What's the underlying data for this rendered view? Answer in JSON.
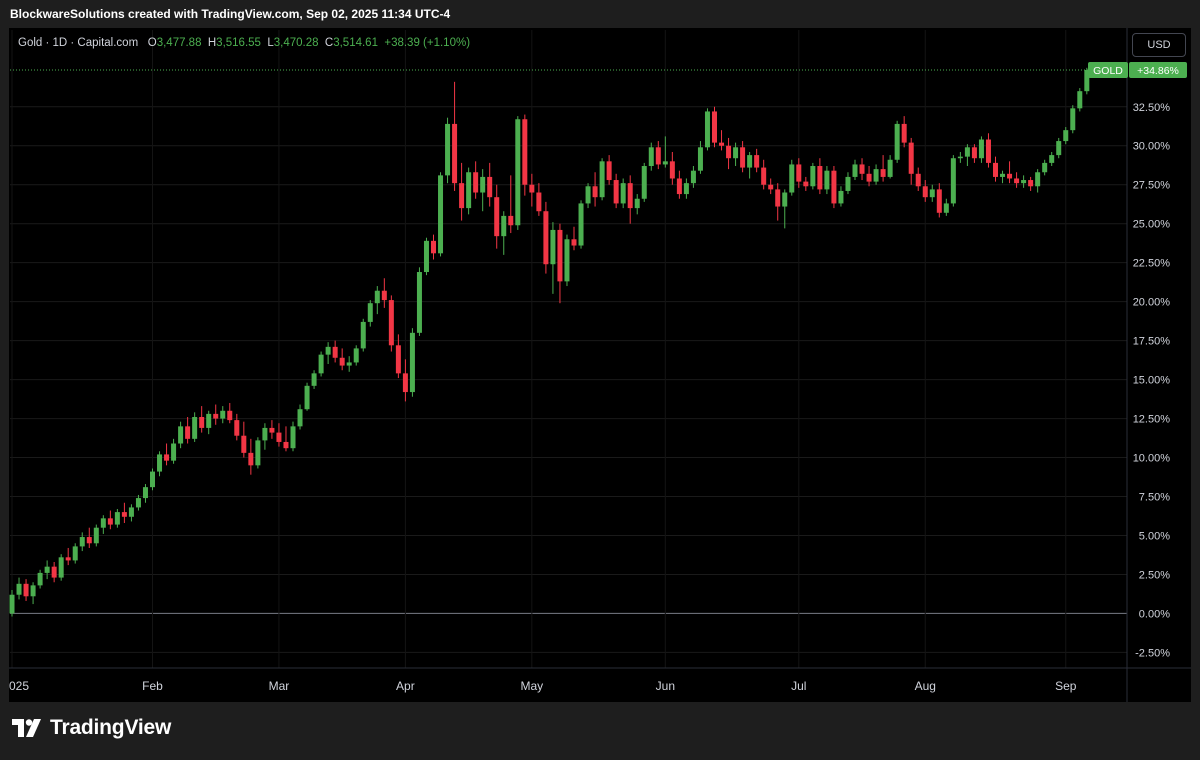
{
  "header": {
    "attribution": "BlockwareSolutions created with TradingView.com, Sep 02, 2025 11:34 UTC-4"
  },
  "legend": {
    "symbol": "Gold · 1D · Capital.com",
    "open_label": "O",
    "open_value": "3,477.88",
    "high_label": "H",
    "high_value": "3,516.55",
    "low_label": "L",
    "low_value": "3,470.28",
    "close_label": "C",
    "close_value": "3,514.61",
    "change": "+38.39 (+1.10%)"
  },
  "currency_button": "USD",
  "price_badge": {
    "name": "GOLD",
    "value": "+34.86%"
  },
  "footer": {
    "logo_text": "TradingView"
  },
  "colors": {
    "up": "#4caf50",
    "down": "#f23645",
    "badge": "#4caf50",
    "background": "#000000"
  },
  "chart_data": {
    "type": "candlestick",
    "title": "Gold · 1D · Capital.com",
    "y_unit": "percent change",
    "ylim": [
      -3.5,
      35.5
    ],
    "y_ticks": [
      "32.50%",
      "30.00%",
      "27.50%",
      "25.00%",
      "22.50%",
      "20.00%",
      "17.50%",
      "15.00%",
      "12.50%",
      "10.00%",
      "7.50%",
      "5.00%",
      "2.50%",
      "0.00%",
      "-2.50%"
    ],
    "y_tick_values": [
      32.5,
      30,
      27.5,
      25,
      22.5,
      20,
      17.5,
      15,
      12.5,
      10,
      7.5,
      5,
      2.5,
      0,
      -2.5
    ],
    "x_labels": [
      {
        "label": "025",
        "day": 0
      },
      {
        "label": "Feb",
        "day": 20
      },
      {
        "label": "Mar",
        "day": 38
      },
      {
        "label": "Apr",
        "day": 56
      },
      {
        "label": "May",
        "day": 74
      },
      {
        "label": "Jun",
        "day": 93
      },
      {
        "label": "Jul",
        "day": 112
      },
      {
        "label": "Aug",
        "day": 130
      },
      {
        "label": "Sep",
        "day": 150
      }
    ],
    "last_value": 34.86,
    "candles": [
      [
        0.0,
        1.5,
        -0.2,
        1.2
      ],
      [
        1.2,
        2.3,
        0.9,
        1.9
      ],
      [
        1.9,
        2.2,
        0.8,
        1.1
      ],
      [
        1.1,
        2.0,
        0.6,
        1.8
      ],
      [
        1.8,
        2.8,
        1.6,
        2.6
      ],
      [
        2.6,
        3.4,
        2.2,
        3.0
      ],
      [
        3.0,
        3.3,
        2.0,
        2.3
      ],
      [
        2.3,
        3.8,
        2.1,
        3.6
      ],
      [
        3.6,
        4.2,
        3.1,
        3.4
      ],
      [
        3.4,
        4.5,
        3.2,
        4.3
      ],
      [
        4.3,
        5.2,
        4.0,
        4.9
      ],
      [
        4.9,
        5.5,
        4.2,
        4.5
      ],
      [
        4.5,
        5.7,
        4.3,
        5.5
      ],
      [
        5.5,
        6.3,
        5.1,
        6.1
      ],
      [
        6.1,
        6.6,
        5.4,
        5.7
      ],
      [
        5.7,
        6.7,
        5.5,
        6.5
      ],
      [
        6.5,
        7.1,
        5.8,
        6.2
      ],
      [
        6.2,
        7.0,
        5.9,
        6.8
      ],
      [
        6.8,
        7.6,
        6.6,
        7.4
      ],
      [
        7.4,
        8.3,
        7.1,
        8.1
      ],
      [
        8.1,
        9.3,
        7.9,
        9.1
      ],
      [
        9.1,
        10.4,
        8.8,
        10.2
      ],
      [
        10.2,
        10.9,
        9.5,
        9.8
      ],
      [
        9.8,
        11.2,
        9.6,
        10.9
      ],
      [
        10.9,
        12.3,
        10.6,
        12.0
      ],
      [
        12.0,
        12.6,
        10.9,
        11.2
      ],
      [
        11.2,
        12.9,
        11.0,
        12.6
      ],
      [
        12.6,
        13.3,
        11.6,
        11.9
      ],
      [
        11.9,
        13.0,
        11.5,
        12.8
      ],
      [
        12.8,
        13.4,
        12.1,
        12.5
      ],
      [
        12.5,
        13.3,
        12.2,
        13.0
      ],
      [
        13.0,
        13.5,
        12.2,
        12.4
      ],
      [
        12.4,
        12.8,
        11.1,
        11.4
      ],
      [
        11.4,
        12.3,
        10.0,
        10.3
      ],
      [
        10.3,
        11.2,
        8.9,
        9.5
      ],
      [
        9.5,
        11.3,
        9.3,
        11.1
      ],
      [
        11.1,
        12.2,
        10.5,
        11.9
      ],
      [
        11.9,
        12.4,
        11.2,
        11.6
      ],
      [
        11.6,
        12.2,
        10.7,
        11.0
      ],
      [
        11.0,
        12.0,
        10.4,
        10.6
      ],
      [
        10.6,
        12.3,
        10.4,
        12.0
      ],
      [
        12.0,
        13.4,
        11.8,
        13.1
      ],
      [
        13.1,
        14.8,
        13.0,
        14.6
      ],
      [
        14.6,
        15.6,
        14.4,
        15.4
      ],
      [
        15.4,
        16.8,
        15.2,
        16.6
      ],
      [
        16.6,
        17.4,
        16.0,
        17.1
      ],
      [
        17.1,
        17.5,
        16.1,
        16.4
      ],
      [
        16.4,
        17.0,
        15.6,
        15.9
      ],
      [
        15.9,
        16.5,
        15.5,
        16.1
      ],
      [
        16.1,
        17.2,
        15.9,
        17.0
      ],
      [
        17.0,
        18.9,
        16.8,
        18.7
      ],
      [
        18.7,
        20.1,
        18.4,
        19.9
      ],
      [
        19.9,
        21.0,
        19.2,
        20.7
      ],
      [
        20.7,
        21.5,
        19.6,
        20.1
      ],
      [
        20.1,
        20.4,
        16.8,
        17.2
      ],
      [
        17.2,
        17.9,
        15.1,
        15.4
      ],
      [
        15.4,
        16.3,
        13.6,
        14.2
      ],
      [
        14.2,
        18.3,
        13.9,
        18.0
      ],
      [
        18.0,
        22.2,
        17.8,
        21.9
      ],
      [
        21.9,
        24.1,
        21.7,
        23.9
      ],
      [
        23.9,
        24.3,
        22.7,
        23.1
      ],
      [
        23.1,
        28.3,
        22.9,
        28.1
      ],
      [
        28.1,
        31.8,
        27.6,
        31.4
      ],
      [
        31.4,
        34.1,
        27.1,
        27.6
      ],
      [
        27.6,
        28.9,
        25.2,
        26.0
      ],
      [
        26.0,
        28.6,
        25.6,
        28.3
      ],
      [
        28.3,
        29.0,
        26.6,
        27.0
      ],
      [
        27.0,
        28.5,
        25.8,
        28.0
      ],
      [
        28.0,
        28.9,
        26.1,
        26.7
      ],
      [
        26.7,
        27.5,
        23.4,
        24.2
      ],
      [
        24.2,
        25.8,
        23.0,
        25.5
      ],
      [
        25.5,
        28.1,
        24.4,
        24.9
      ],
      [
        24.9,
        31.9,
        24.6,
        31.7
      ],
      [
        31.7,
        32.0,
        26.8,
        27.5
      ],
      [
        27.5,
        28.2,
        26.1,
        27.0
      ],
      [
        27.0,
        27.6,
        25.5,
        25.8
      ],
      [
        25.8,
        26.4,
        21.8,
        22.4
      ],
      [
        22.4,
        25.1,
        20.5,
        24.6
      ],
      [
        24.6,
        25.0,
        19.9,
        21.3
      ],
      [
        21.3,
        24.3,
        21.0,
        24.0
      ],
      [
        24.0,
        24.8,
        23.3,
        23.6
      ],
      [
        23.6,
        26.5,
        23.4,
        26.3
      ],
      [
        26.3,
        27.6,
        26.0,
        27.4
      ],
      [
        27.4,
        28.3,
        26.1,
        26.7
      ],
      [
        26.7,
        29.2,
        26.5,
        29.0
      ],
      [
        29.0,
        29.4,
        27.5,
        27.8
      ],
      [
        27.8,
        28.2,
        26.0,
        26.3
      ],
      [
        26.3,
        27.9,
        26.0,
        27.6
      ],
      [
        27.6,
        28.1,
        25.0,
        26.0
      ],
      [
        26.0,
        26.9,
        25.6,
        26.6
      ],
      [
        26.6,
        28.9,
        26.4,
        28.7
      ],
      [
        28.7,
        30.2,
        28.4,
        29.9
      ],
      [
        29.9,
        30.3,
        28.5,
        28.8
      ],
      [
        28.8,
        30.6,
        28.6,
        29.0
      ],
      [
        29.0,
        29.6,
        27.5,
        27.9
      ],
      [
        27.9,
        28.4,
        26.6,
        26.9
      ],
      [
        26.9,
        27.9,
        26.6,
        27.6
      ],
      [
        27.6,
        28.7,
        27.3,
        28.4
      ],
      [
        28.4,
        30.3,
        28.2,
        29.9
      ],
      [
        29.9,
        32.4,
        29.7,
        32.2
      ],
      [
        32.2,
        32.5,
        29.9,
        30.2
      ],
      [
        30.2,
        31.0,
        29.7,
        30.0
      ],
      [
        30.0,
        30.5,
        28.5,
        29.2
      ],
      [
        29.2,
        30.2,
        28.7,
        29.9
      ],
      [
        29.9,
        30.3,
        28.3,
        28.6
      ],
      [
        28.6,
        29.6,
        27.9,
        29.4
      ],
      [
        29.4,
        29.8,
        28.3,
        28.6
      ],
      [
        28.6,
        29.1,
        27.2,
        27.5
      ],
      [
        27.5,
        27.9,
        26.9,
        27.2
      ],
      [
        27.2,
        27.6,
        25.2,
        26.1
      ],
      [
        26.1,
        27.2,
        24.7,
        27.0
      ],
      [
        27.0,
        29.1,
        26.8,
        28.8
      ],
      [
        28.8,
        29.2,
        27.3,
        27.7
      ],
      [
        27.7,
        28.0,
        27.1,
        27.4
      ],
      [
        27.4,
        28.9,
        27.2,
        28.7
      ],
      [
        28.7,
        29.2,
        26.9,
        27.2
      ],
      [
        27.2,
        28.7,
        26.9,
        28.4
      ],
      [
        28.4,
        28.7,
        26.0,
        26.3
      ],
      [
        26.3,
        27.4,
        26.1,
        27.1
      ],
      [
        27.1,
        28.3,
        26.9,
        28.0
      ],
      [
        28.0,
        29.1,
        27.8,
        28.8
      ],
      [
        28.8,
        29.2,
        27.8,
        28.2
      ],
      [
        28.2,
        28.7,
        27.4,
        27.7
      ],
      [
        27.7,
        28.8,
        27.5,
        28.5
      ],
      [
        28.5,
        29.4,
        27.7,
        28.0
      ],
      [
        28.0,
        29.4,
        27.9,
        29.1
      ],
      [
        29.1,
        31.6,
        28.9,
        31.4
      ],
      [
        31.4,
        31.9,
        29.9,
        30.2
      ],
      [
        30.2,
        30.5,
        27.5,
        28.2
      ],
      [
        28.2,
        28.6,
        27.1,
        27.4
      ],
      [
        27.4,
        27.8,
        26.4,
        26.7
      ],
      [
        26.7,
        27.5,
        26.4,
        27.2
      ],
      [
        27.2,
        27.6,
        25.4,
        25.7
      ],
      [
        25.7,
        26.6,
        25.5,
        26.3
      ],
      [
        26.3,
        29.4,
        26.1,
        29.2
      ],
      [
        29.2,
        29.6,
        28.9,
        29.3
      ],
      [
        29.3,
        30.1,
        28.7,
        29.9
      ],
      [
        29.9,
        30.1,
        28.9,
        29.2
      ],
      [
        29.2,
        30.6,
        28.9,
        30.4
      ],
      [
        30.4,
        30.8,
        28.6,
        28.9
      ],
      [
        28.9,
        29.3,
        27.7,
        28.0
      ],
      [
        28.0,
        28.4,
        27.6,
        28.2
      ],
      [
        28.2,
        29.0,
        27.6,
        27.9
      ],
      [
        27.9,
        28.3,
        27.3,
        27.6
      ],
      [
        27.6,
        28.1,
        27.3,
        27.8
      ],
      [
        27.8,
        28.0,
        27.1,
        27.4
      ],
      [
        27.4,
        28.5,
        27.0,
        28.3
      ],
      [
        28.3,
        29.1,
        28.1,
        28.9
      ],
      [
        28.9,
        29.6,
        28.7,
        29.4
      ],
      [
        29.4,
        30.5,
        29.2,
        30.3
      ],
      [
        30.3,
        31.2,
        30.1,
        31.0
      ],
      [
        31.0,
        32.6,
        30.8,
        32.4
      ],
      [
        32.4,
        33.7,
        32.2,
        33.5
      ],
      [
        33.5,
        35.0,
        33.3,
        34.86
      ]
    ]
  }
}
